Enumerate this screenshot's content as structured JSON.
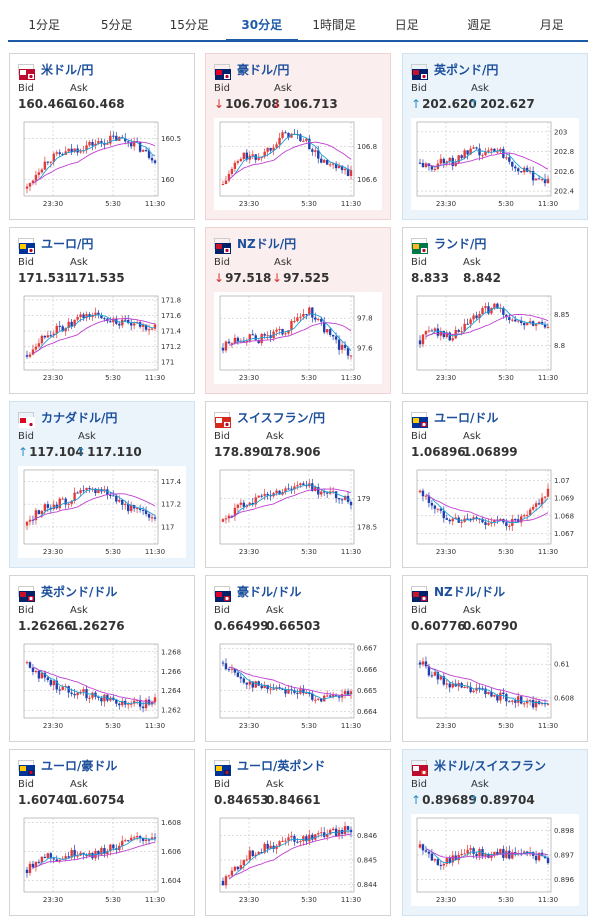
{
  "tabs": [
    {
      "label": "1分足",
      "active": false
    },
    {
      "label": "5分足",
      "active": false
    },
    {
      "label": "15分足",
      "active": false
    },
    {
      "label": "30分足",
      "active": true
    },
    {
      "label": "1時間足",
      "active": false
    },
    {
      "label": "日足",
      "active": false
    },
    {
      "label": "週足",
      "active": false
    },
    {
      "label": "月足",
      "active": false
    }
  ],
  "labels": {
    "bid": "Bid",
    "ask": "Ask"
  },
  "x_ticks": [
    "23:30",
    "5:30",
    "11:30"
  ],
  "colors": {
    "up_bar": "#e03a3a",
    "down_bar": "#2040b0",
    "ma_short": "#1e9fd8",
    "ma_long": "#c040d0",
    "arrow_down": "#d63030",
    "arrow_up": "#2a8cc4",
    "down_bg": "#fbeeee",
    "up_bg": "#ebf4fb"
  },
  "pairs": [
    {
      "name": "米ドル/円",
      "flag": "us-jp-flag-icon",
      "bid": "160.466",
      "ask": "160.468",
      "dir": "none",
      "chart_data": {
        "type": "candlestick",
        "ylim": [
          159.8,
          160.7
        ],
        "yticks": [
          "160.5",
          "160"
        ],
        "shape": [
          0.1,
          0.35,
          0.5,
          0.55,
          0.6,
          0.65,
          0.7,
          0.72,
          0.78,
          0.76,
          0.72,
          0.6,
          0.5
        ]
      }
    },
    {
      "name": "豪ドル/円",
      "flag": "au-jp-flag-icon",
      "bid": "106.708",
      "ask": "106.713",
      "dir": "down",
      "chart_data": {
        "type": "candlestick",
        "ylim": [
          106.5,
          106.95
        ],
        "yticks": [
          "106.8",
          "106.6"
        ],
        "shape": [
          0.15,
          0.4,
          0.55,
          0.5,
          0.6,
          0.75,
          0.85,
          0.8,
          0.7,
          0.5,
          0.4,
          0.35,
          0.3
        ]
      }
    },
    {
      "name": "英ポンド/円",
      "flag": "gb-jp-flag-icon",
      "bid": "202.620",
      "ask": "202.627",
      "dir": "up",
      "chart_data": {
        "type": "candlestick",
        "ylim": [
          202.35,
          203.1
        ],
        "yticks": [
          "203",
          "202.8",
          "202.6",
          "202.4"
        ],
        "shape": [
          0.45,
          0.35,
          0.5,
          0.45,
          0.55,
          0.6,
          0.55,
          0.65,
          0.55,
          0.4,
          0.3,
          0.25,
          0.2
        ]
      }
    },
    {
      "name": "ユーロ/円",
      "flag": "eu-jp-flag-icon",
      "bid": "171.531",
      "ask": "171.535",
      "dir": "none",
      "chart_data": {
        "type": "candlestick",
        "ylim": [
          170.9,
          171.85
        ],
        "yticks": [
          "171.8",
          "171.6",
          "171.4",
          "171.2",
          "171"
        ],
        "shape": [
          0.2,
          0.4,
          0.5,
          0.55,
          0.6,
          0.7,
          0.75,
          0.72,
          0.68,
          0.62,
          0.6,
          0.58,
          0.6
        ]
      }
    },
    {
      "name": "NZドル/円",
      "flag": "nz-jp-flag-icon",
      "bid": "97.518",
      "ask": "97.525",
      "dir": "down",
      "chart_data": {
        "type": "candlestick",
        "ylim": [
          97.45,
          97.95
        ],
        "yticks": [
          "97.8",
          "97.6"
        ],
        "shape": [
          0.3,
          0.4,
          0.45,
          0.4,
          0.45,
          0.5,
          0.55,
          0.7,
          0.8,
          0.65,
          0.45,
          0.3,
          0.2
        ]
      }
    },
    {
      "name": "ランド/円",
      "flag": "za-jp-flag-icon",
      "bid": "8.833",
      "ask": "8.842",
      "dir": "none",
      "chart_data": {
        "type": "candlestick",
        "ylim": [
          8.76,
          8.88
        ],
        "yticks": [
          "8.85",
          "8.8"
        ],
        "shape": [
          0.4,
          0.55,
          0.5,
          0.45,
          0.55,
          0.7,
          0.8,
          0.85,
          0.75,
          0.65,
          0.6,
          0.62,
          0.6
        ]
      }
    },
    {
      "name": "カナダドル/円",
      "flag": "ca-jp-flag-icon",
      "bid": "117.104",
      "ask": "117.110",
      "dir": "up",
      "chart_data": {
        "type": "candlestick",
        "ylim": [
          116.85,
          117.5
        ],
        "yticks": [
          "117.4",
          "117.2",
          "117"
        ],
        "shape": [
          0.25,
          0.45,
          0.5,
          0.55,
          0.6,
          0.7,
          0.72,
          0.75,
          0.65,
          0.55,
          0.45,
          0.4,
          0.38
        ]
      }
    },
    {
      "name": "スイスフラン/円",
      "flag": "ch-jp-flag-icon",
      "bid": "178.890",
      "ask": "178.906",
      "dir": "none",
      "chart_data": {
        "type": "candlestick",
        "ylim": [
          178.2,
          179.5
        ],
        "yticks": [
          "179",
          "178.5"
        ],
        "shape": [
          0.3,
          0.45,
          0.55,
          0.6,
          0.65,
          0.7,
          0.75,
          0.8,
          0.78,
          0.72,
          0.68,
          0.62,
          0.58
        ]
      }
    },
    {
      "name": "ユーロ/ドル",
      "flag": "eu-us-flag-icon",
      "bid": "1.06896",
      "ask": "1.06899",
      "dir": "none",
      "chart_data": {
        "type": "candlestick",
        "ylim": [
          1.0664,
          1.0706
        ],
        "yticks": [
          "1.07",
          "1.069",
          "1.068",
          "1.067"
        ],
        "shape": [
          0.7,
          0.55,
          0.4,
          0.35,
          0.3,
          0.35,
          0.3,
          0.3,
          0.28,
          0.3,
          0.35,
          0.55,
          0.7
        ]
      }
    },
    {
      "name": "英ポンド/ドル",
      "flag": "gb-us-flag-icon",
      "bid": "1.26266",
      "ask": "1.26276",
      "dir": "none",
      "chart_data": {
        "type": "candlestick",
        "ylim": [
          1.2612,
          1.2688
        ],
        "yticks": [
          "1.268",
          "1.266",
          "1.264",
          "1.262"
        ],
        "shape": [
          0.75,
          0.6,
          0.5,
          0.42,
          0.38,
          0.35,
          0.3,
          0.28,
          0.25,
          0.22,
          0.2,
          0.18,
          0.25
        ]
      }
    },
    {
      "name": "豪ドル/ドル",
      "flag": "au-us-flag-icon",
      "bid": "0.66499",
      "ask": "0.66503",
      "dir": "none",
      "chart_data": {
        "type": "candlestick",
        "ylim": [
          0.6637,
          0.6672
        ],
        "yticks": [
          "0.667",
          "0.666",
          "0.665",
          "0.664"
        ],
        "shape": [
          0.75,
          0.6,
          0.5,
          0.45,
          0.4,
          0.42,
          0.38,
          0.35,
          0.3,
          0.28,
          0.25,
          0.28,
          0.35
        ]
      }
    },
    {
      "name": "NZドル/ドル",
      "flag": "nz-us-flag-icon",
      "bid": "0.60776",
      "ask": "0.60790",
      "dir": "none",
      "chart_data": {
        "type": "candlestick",
        "ylim": [
          0.6068,
          0.6112
        ],
        "yticks": [
          "0.61",
          "0.608"
        ],
        "shape": [
          0.75,
          0.6,
          0.5,
          0.45,
          0.4,
          0.38,
          0.35,
          0.3,
          0.28,
          0.25,
          0.2,
          0.18,
          0.2
        ]
      }
    },
    {
      "name": "ユーロ/豪ドル",
      "flag": "eu-au-flag-icon",
      "bid": "1.60740",
      "ask": "1.60754",
      "dir": "none",
      "chart_data": {
        "type": "candlestick",
        "ylim": [
          1.6032,
          1.6083
        ],
        "yticks": [
          "1.608",
          "1.606",
          "1.604"
        ],
        "shape": [
          0.3,
          0.45,
          0.5,
          0.45,
          0.5,
          0.55,
          0.5,
          0.55,
          0.6,
          0.65,
          0.7,
          0.72,
          0.75
        ]
      }
    },
    {
      "name": "ユーロ/英ポンド",
      "flag": "eu-gb-flag-icon",
      "bid": "0.84653",
      "ask": "0.84661",
      "dir": "none",
      "chart_data": {
        "type": "candlestick",
        "ylim": [
          0.8437,
          0.8467
        ],
        "yticks": [
          "0.846",
          "0.845",
          "0.844"
        ],
        "shape": [
          0.15,
          0.3,
          0.45,
          0.55,
          0.6,
          0.65,
          0.7,
          0.72,
          0.75,
          0.78,
          0.8,
          0.82,
          0.85
        ]
      }
    },
    {
      "name": "米ドル/スイスフラン",
      "flag": "us-ch-flag-icon",
      "bid": "0.89689",
      "ask": "0.89704",
      "dir": "up",
      "chart_data": {
        "type": "candlestick",
        "ylim": [
          0.8955,
          0.8985
        ],
        "yticks": [
          "0.898",
          "0.897",
          "0.896"
        ],
        "shape": [
          0.6,
          0.45,
          0.4,
          0.45,
          0.5,
          0.55,
          0.5,
          0.55,
          0.5,
          0.52,
          0.5,
          0.48,
          0.45
        ]
      }
    }
  ]
}
